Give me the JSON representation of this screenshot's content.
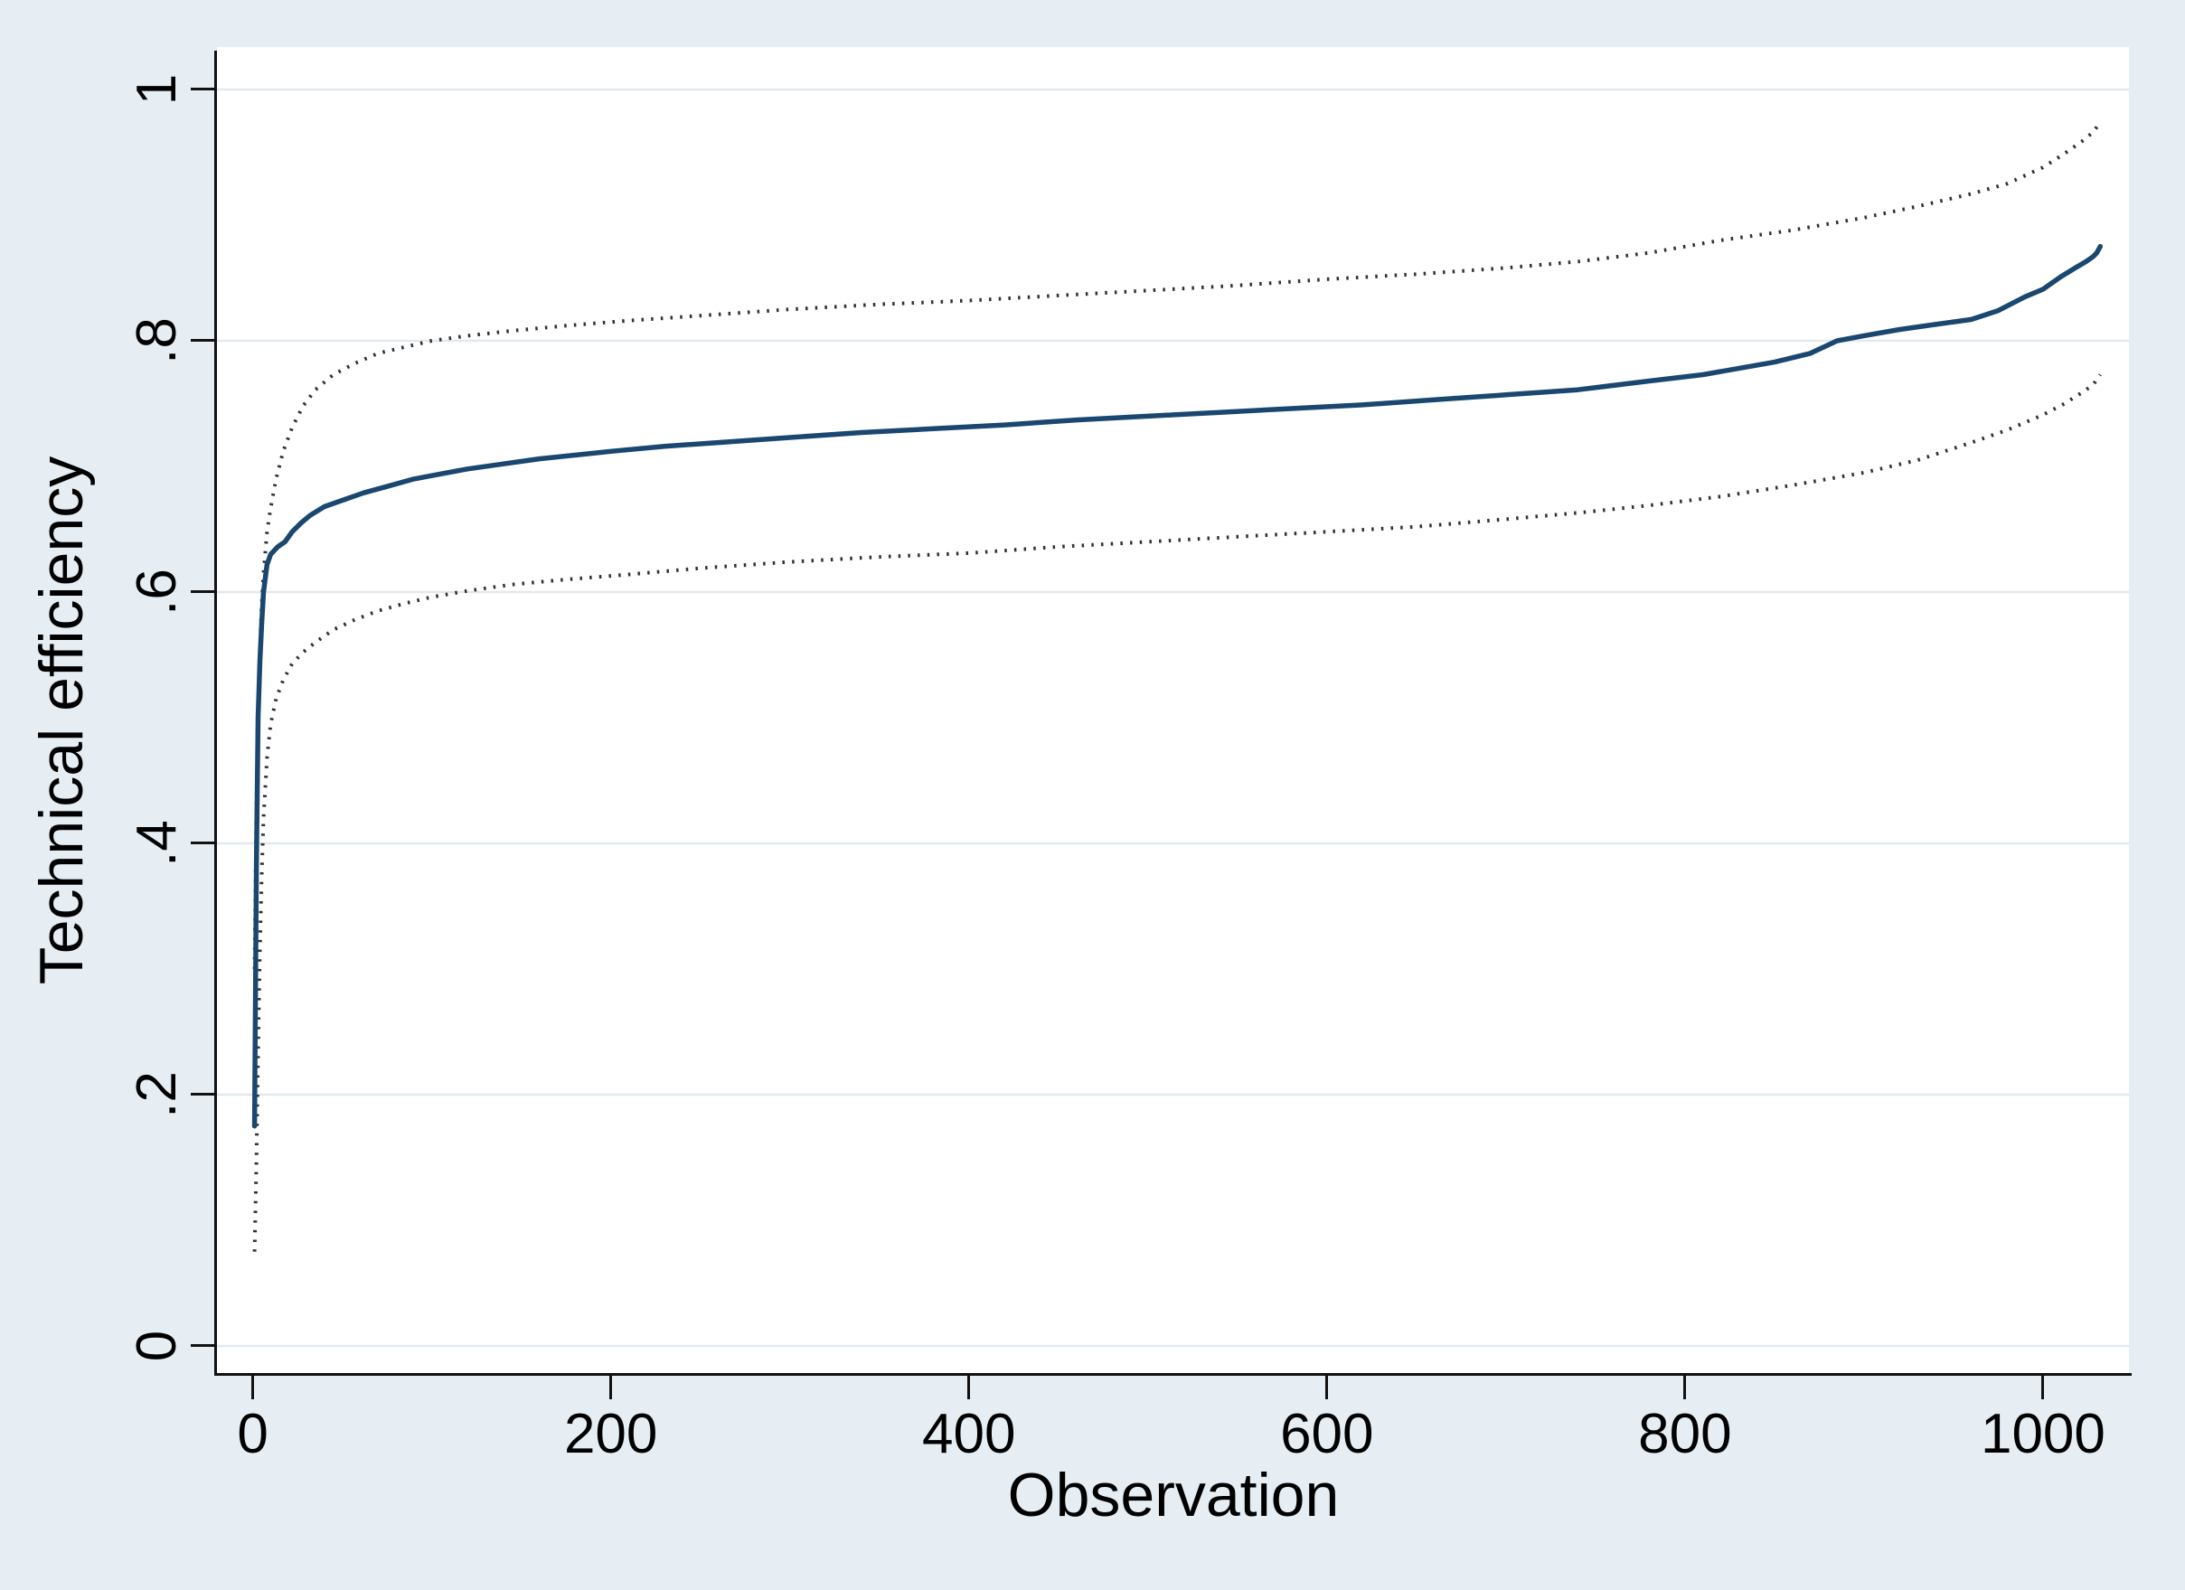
{
  "figure": {
    "kind": "stata-style line chart with confidence bands",
    "title": ""
  },
  "colors": {
    "background": "#e7eef3",
    "plot_background": "#ffffff",
    "gridline": "#e1e9ef",
    "axis": "#111111",
    "mean_line": "#1a476f",
    "ci_dots": "#303030",
    "text": "#000000"
  },
  "chart_data": {
    "type": "line",
    "title": "",
    "xlabel": "Observation",
    "ylabel": "Technical efficiency",
    "grid": true,
    "legend_position": "none",
    "xlim": [
      -20,
      1048
    ],
    "ylim": [
      -0.0216,
      1.0338
    ],
    "x_ticks": {
      "values": [
        0,
        200,
        400,
        600,
        800,
        1000
      ],
      "labels": [
        "0",
        "200",
        "400",
        "600",
        "800",
        "1000"
      ]
    },
    "y_ticks": {
      "values": [
        0,
        0.2,
        0.4,
        0.6,
        0.8,
        1
      ],
      "labels": [
        "0",
        ".2",
        ".4",
        ".6",
        ".8",
        "1"
      ]
    },
    "series": [
      {
        "name": "technical-efficiency-mean",
        "style": "solid",
        "color": "#1a476f",
        "points": [
          [
            1,
            0.175
          ],
          [
            2,
            0.38
          ],
          [
            3,
            0.5
          ],
          [
            4,
            0.545
          ],
          [
            5,
            0.575
          ],
          [
            6,
            0.6
          ],
          [
            8,
            0.622
          ],
          [
            10,
            0.63
          ],
          [
            14,
            0.636
          ],
          [
            18,
            0.64
          ],
          [
            22,
            0.648
          ],
          [
            27,
            0.655
          ],
          [
            32,
            0.661
          ],
          [
            40,
            0.668
          ],
          [
            50,
            0.673
          ],
          [
            62,
            0.679
          ],
          [
            75,
            0.684
          ],
          [
            90,
            0.69
          ],
          [
            105,
            0.694
          ],
          [
            120,
            0.698
          ],
          [
            140,
            0.702
          ],
          [
            160,
            0.706
          ],
          [
            180,
            0.709
          ],
          [
            200,
            0.712
          ],
          [
            230,
            0.716
          ],
          [
            260,
            0.719
          ],
          [
            300,
            0.723
          ],
          [
            340,
            0.727
          ],
          [
            380,
            0.73
          ],
          [
            420,
            0.733
          ],
          [
            460,
            0.737
          ],
          [
            500,
            0.74
          ],
          [
            540,
            0.743
          ],
          [
            580,
            0.746
          ],
          [
            620,
            0.749
          ],
          [
            660,
            0.753
          ],
          [
            700,
            0.757
          ],
          [
            740,
            0.761
          ],
          [
            780,
            0.768
          ],
          [
            810,
            0.773
          ],
          [
            850,
            0.783
          ],
          [
            870,
            0.79
          ],
          [
            885,
            0.8
          ],
          [
            900,
            0.804
          ],
          [
            920,
            0.809
          ],
          [
            940,
            0.813
          ],
          [
            960,
            0.817
          ],
          [
            975,
            0.824
          ],
          [
            990,
            0.835
          ],
          [
            1000,
            0.841
          ],
          [
            1010,
            0.851
          ],
          [
            1018,
            0.858
          ],
          [
            1024,
            0.863
          ],
          [
            1028,
            0.867
          ],
          [
            1030,
            0.87
          ],
          [
            1032,
            0.875
          ]
        ]
      },
      {
        "name": "upper-confidence-bound",
        "style": "dotted",
        "color": "#303030",
        "points": [
          [
            1,
            0.3
          ],
          [
            2,
            0.43
          ],
          [
            3,
            0.5
          ],
          [
            4,
            0.555
          ],
          [
            5,
            0.59
          ],
          [
            6,
            0.615
          ],
          [
            8,
            0.648
          ],
          [
            10,
            0.667
          ],
          [
            13,
            0.69
          ],
          [
            17,
            0.712
          ],
          [
            22,
            0.731
          ],
          [
            28,
            0.748
          ],
          [
            35,
            0.761
          ],
          [
            45,
            0.773
          ],
          [
            57,
            0.782
          ],
          [
            70,
            0.79
          ],
          [
            85,
            0.795
          ],
          [
            100,
            0.8
          ],
          [
            120,
            0.804
          ],
          [
            145,
            0.808
          ],
          [
            175,
            0.812
          ],
          [
            210,
            0.816
          ],
          [
            250,
            0.82
          ],
          [
            300,
            0.825
          ],
          [
            350,
            0.829
          ],
          [
            400,
            0.832
          ],
          [
            450,
            0.836
          ],
          [
            500,
            0.84
          ],
          [
            550,
            0.844
          ],
          [
            600,
            0.849
          ],
          [
            650,
            0.853
          ],
          [
            700,
            0.858
          ],
          [
            740,
            0.863
          ],
          [
            780,
            0.87
          ],
          [
            820,
            0.88
          ],
          [
            860,
            0.888
          ],
          [
            900,
            0.898
          ],
          [
            930,
            0.907
          ],
          [
            960,
            0.917
          ],
          [
            980,
            0.925
          ],
          [
            1000,
            0.938
          ],
          [
            1012,
            0.949
          ],
          [
            1022,
            0.959
          ],
          [
            1028,
            0.966
          ],
          [
            1032,
            0.974
          ]
        ]
      },
      {
        "name": "lower-confidence-bound",
        "style": "dotted",
        "color": "#303030",
        "points": [
          [
            1,
            0.075
          ],
          [
            2,
            0.145
          ],
          [
            3,
            0.235
          ],
          [
            4,
            0.315
          ],
          [
            5,
            0.375
          ],
          [
            6,
            0.42
          ],
          [
            8,
            0.468
          ],
          [
            10,
            0.495
          ],
          [
            13,
            0.515
          ],
          [
            17,
            0.53
          ],
          [
            22,
            0.543
          ],
          [
            28,
            0.552
          ],
          [
            35,
            0.56
          ],
          [
            45,
            0.57
          ],
          [
            57,
            0.578
          ],
          [
            70,
            0.585
          ],
          [
            85,
            0.591
          ],
          [
            100,
            0.596
          ],
          [
            120,
            0.601
          ],
          [
            145,
            0.606
          ],
          [
            175,
            0.61
          ],
          [
            210,
            0.614
          ],
          [
            250,
            0.619
          ],
          [
            300,
            0.624
          ],
          [
            350,
            0.628
          ],
          [
            400,
            0.631
          ],
          [
            450,
            0.636
          ],
          [
            500,
            0.64
          ],
          [
            550,
            0.644
          ],
          [
            600,
            0.648
          ],
          [
            650,
            0.652
          ],
          [
            700,
            0.658
          ],
          [
            740,
            0.663
          ],
          [
            780,
            0.669
          ],
          [
            820,
            0.676
          ],
          [
            860,
            0.685
          ],
          [
            900,
            0.695
          ],
          [
            930,
            0.705
          ],
          [
            960,
            0.719
          ],
          [
            980,
            0.729
          ],
          [
            1000,
            0.741
          ],
          [
            1012,
            0.75
          ],
          [
            1022,
            0.759
          ],
          [
            1028,
            0.765
          ],
          [
            1032,
            0.773
          ]
        ]
      }
    ]
  }
}
